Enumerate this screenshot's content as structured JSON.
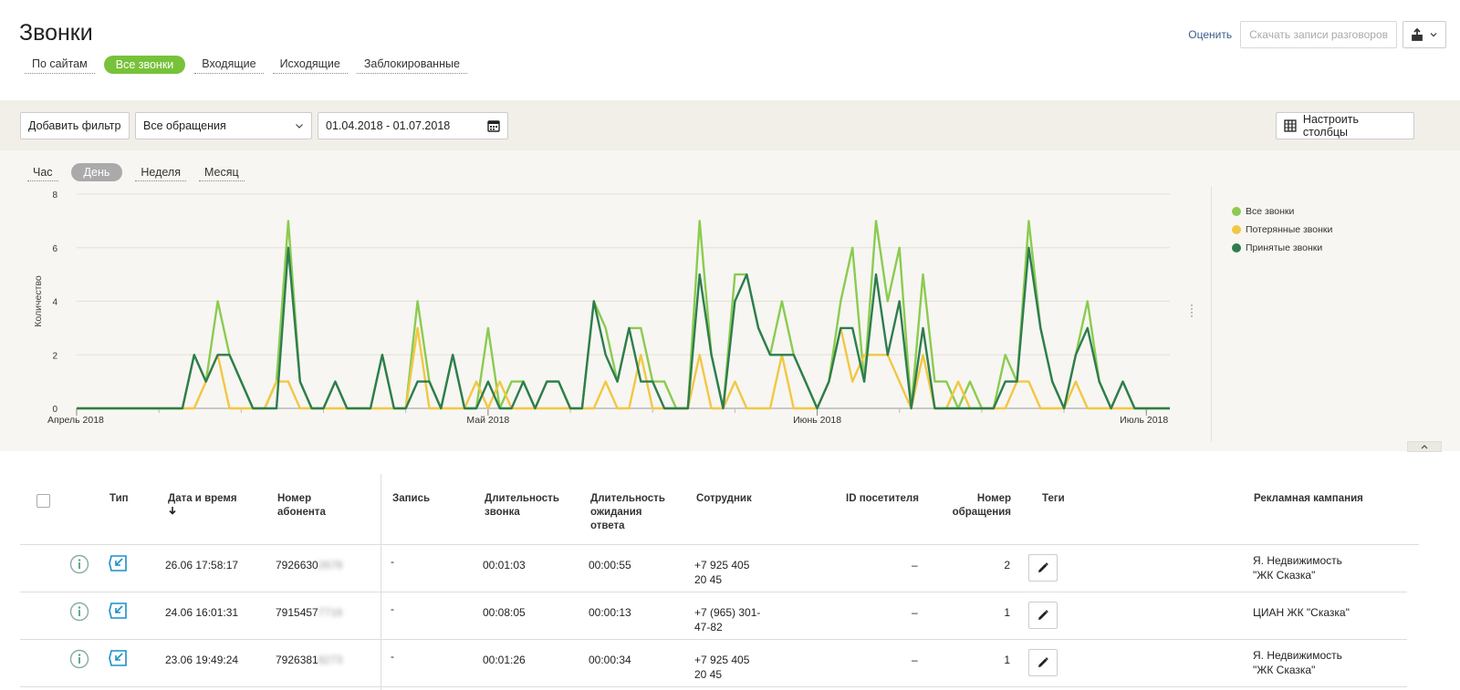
{
  "header": {
    "title": "Звонки",
    "tabs": [
      "По сайтам",
      "Все звонки",
      "Входящие",
      "Исходящие",
      "Заблокированные"
    ],
    "active_tab": "Все звонки",
    "rate_link": "Оценить",
    "download_button": "Скачать записи разговоров"
  },
  "filters": {
    "add_filter": "Добавить фильтр",
    "select_value": "Все обращения",
    "date_range": "01.04.2018 - 01.07.2018",
    "configure_columns": "Настроить столбцы"
  },
  "granularity": {
    "options": [
      "Час",
      "День",
      "Неделя",
      "Месяц"
    ],
    "active": "День"
  },
  "colors": {
    "all": "#8bcb50",
    "lost": "#f2c744",
    "accepted": "#2e7d4f",
    "accent": "#77c23a"
  },
  "chart_data": {
    "type": "line",
    "ylabel": "Количество",
    "ylim": [
      0,
      8
    ],
    "yticks": [
      0,
      2,
      4,
      6,
      8
    ],
    "xlabels": [
      {
        "label": "Апрель 2018",
        "index": 0
      },
      {
        "label": "Май 2018",
        "index": 35
      },
      {
        "label": "Июнь 2018",
        "index": 63
      },
      {
        "label": "Июль 2018",
        "index": 91
      }
    ],
    "grid": true,
    "legend_position": "right",
    "series": [
      {
        "name": "Все звонки",
        "color": "#8bcb50",
        "values": [
          0,
          0,
          0,
          0,
          0,
          0,
          0,
          0,
          0,
          0,
          2,
          1,
          4,
          2,
          1,
          0,
          0,
          1,
          7,
          1,
          0,
          0,
          1,
          0,
          0,
          0,
          2,
          0,
          0,
          4,
          1,
          0,
          2,
          0,
          0,
          3,
          0,
          1,
          1,
          0,
          1,
          1,
          0,
          0,
          4,
          3,
          1,
          3,
          3,
          1,
          1,
          0,
          0,
          7,
          2,
          0,
          5,
          5,
          3,
          2,
          4,
          2,
          1,
          0,
          1,
          4,
          6,
          1,
          7,
          4,
          6,
          0,
          5,
          1,
          1,
          0,
          1,
          0,
          0,
          2,
          1,
          7,
          3,
          1,
          0,
          2,
          4,
          1,
          0,
          1,
          0,
          0,
          0,
          0
        ]
      },
      {
        "name": "Потерянные звонки",
        "color": "#f2c744",
        "values": [
          0,
          0,
          0,
          0,
          0,
          0,
          0,
          0,
          0,
          0,
          0,
          1,
          2,
          0,
          0,
          0,
          0,
          1,
          1,
          0,
          0,
          0,
          0,
          0,
          0,
          0,
          0,
          0,
          0,
          3,
          0,
          0,
          0,
          0,
          1,
          0,
          1,
          0,
          0,
          0,
          0,
          0,
          0,
          0,
          0,
          1,
          0,
          0,
          2,
          0,
          0,
          0,
          0,
          2,
          0,
          0,
          1,
          0,
          0,
          0,
          2,
          0,
          0,
          0,
          1,
          3,
          1,
          2,
          2,
          2,
          1,
          0,
          2,
          0,
          0,
          1,
          0,
          0,
          0,
          0,
          1,
          1,
          0,
          0,
          0,
          1,
          0,
          0,
          0,
          0,
          0,
          0,
          0,
          0
        ]
      },
      {
        "name": "Принятые звонки",
        "color": "#2e7d4f",
        "values": [
          0,
          0,
          0,
          0,
          0,
          0,
          0,
          0,
          0,
          0,
          2,
          1,
          2,
          2,
          1,
          0,
          0,
          0,
          6,
          1,
          0,
          0,
          1,
          0,
          0,
          0,
          2,
          0,
          0,
          1,
          1,
          0,
          2,
          0,
          0,
          1,
          0,
          0,
          1,
          0,
          1,
          1,
          0,
          0,
          4,
          2,
          1,
          3,
          1,
          1,
          0,
          0,
          0,
          5,
          2,
          0,
          4,
          5,
          3,
          2,
          2,
          2,
          1,
          0,
          1,
          3,
          3,
          1,
          5,
          2,
          4,
          0,
          3,
          0,
          0,
          0,
          0,
          0,
          0,
          1,
          1,
          6,
          3,
          1,
          0,
          2,
          3,
          1,
          0,
          1,
          0,
          0,
          0,
          0
        ]
      }
    ]
  },
  "table": {
    "headers": {
      "type": "Тип",
      "datetime": "Дата и время",
      "phone": [
        "Номер",
        "абонента"
      ],
      "record": "Запись",
      "duration": [
        "Длительность",
        "звонка"
      ],
      "wait": [
        "Длительность",
        "ожидания",
        "ответа"
      ],
      "employee": "Сотрудник",
      "visitor_id": "ID посетителя",
      "request_no": [
        "Номер",
        "обращения"
      ],
      "tags": "Теги",
      "campaign": "Рекламная кампания"
    },
    "rows": [
      {
        "datetime": "26.06 17:58:17",
        "phone": "7926630",
        "phone_hidden": "2678",
        "record": "-",
        "duration": "00:01:03",
        "wait": "00:00:55",
        "employee": [
          "+7 925 405",
          "20 45"
        ],
        "visitor_id": "–",
        "request_no": "2",
        "campaign": [
          "Я. Недвижимость",
          "\"ЖК Сказка\""
        ]
      },
      {
        "datetime": "24.06 16:01:31",
        "phone": "7915457",
        "phone_hidden": "7716",
        "record": "-",
        "duration": "00:08:05",
        "wait": "00:00:13",
        "employee": [
          "+7 (965) 301-",
          "47-82"
        ],
        "visitor_id": "–",
        "request_no": "1",
        "campaign": [
          "ЦИАН ЖК \"Сказка\"",
          ""
        ]
      },
      {
        "datetime": "23.06 19:49:24",
        "phone": "7926381",
        "phone_hidden": "8273",
        "record": "-",
        "duration": "00:01:26",
        "wait": "00:00:34",
        "employee": [
          "+7 925 405",
          "20 45"
        ],
        "visitor_id": "–",
        "request_no": "1",
        "campaign": [
          "Я. Недвижимость",
          "\"ЖК Сказка\""
        ]
      }
    ]
  }
}
